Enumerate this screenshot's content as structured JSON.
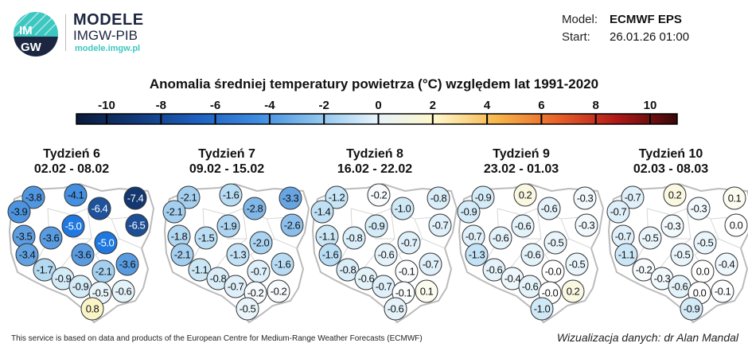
{
  "logo": {
    "letters": "IMGW",
    "name": "MODELE",
    "org": "IMGW-PIB",
    "url": "modele.imgw.pl"
  },
  "meta": {
    "model_label": "Model:",
    "model_value": "ECMWF EPS",
    "start_label": "Start:",
    "start_value": "26.01.26 01:00"
  },
  "title": "Anomalia średniej temperatury powietrza (°C) względem lat 1991-2020",
  "colorbar": {
    "ticks": [
      "-10",
      "-8",
      "-6",
      "-4",
      "-2",
      "0",
      "2",
      "4",
      "6",
      "8",
      "10"
    ],
    "range": [
      -10,
      10
    ],
    "colors": [
      "#0a1a3a",
      "#123a7a",
      "#1d5fc0",
      "#3d8be0",
      "#8cc3ee",
      "#e6f3fb",
      "#fff6c8",
      "#f7b64a",
      "#e8622a",
      "#b01818",
      "#3a0808"
    ]
  },
  "panels": [
    {
      "week": "Tydzień 6",
      "dates": "02.02 - 08.02",
      "values": [
        -3.8,
        -4.1,
        -7.4,
        -3.9,
        -6.4,
        -5.0,
        -6.5,
        -3.5,
        -3.6,
        -5.0,
        -3.4,
        -3.6,
        -3.6,
        -1.7,
        -2.1,
        -0.9,
        -0.9,
        -0.5,
        -0.6,
        0.8
      ]
    },
    {
      "week": "Tydzień 7",
      "dates": "09.02 - 15.02",
      "values": [
        -2.1,
        -1.6,
        -3.3,
        -2.1,
        -2.8,
        -1.9,
        -2.6,
        -1.8,
        -1.5,
        -2.0,
        -2.1,
        -1.3,
        -1.6,
        -1.1,
        -0.7,
        -0.8,
        -0.7,
        -0.2,
        -0.2,
        -0.5
      ]
    },
    {
      "week": "Tydzień 8",
      "dates": "16.02 - 22.02",
      "values": [
        -1.2,
        -0.2,
        -0.8,
        -1.4,
        -1.0,
        -0.9,
        -0.7,
        -1.1,
        -0.8,
        -0.7,
        -1.6,
        -0.6,
        -0.7,
        -0.8,
        -0.1,
        -0.6,
        -0.7,
        -0.1,
        0.1,
        -0.6
      ]
    },
    {
      "week": "Tydzień 9",
      "dates": "23.02 - 01.03",
      "values": [
        -0.9,
        0.2,
        -0.3,
        -0.9,
        -0.6,
        -0.6,
        -0.3,
        -0.7,
        -0.6,
        -0.5,
        -1.3,
        -0.6,
        -0.5,
        -0.6,
        -0.0,
        -0.4,
        -0.6,
        -0.0,
        0.2,
        -1.0
      ]
    },
    {
      "week": "Tydzień 10",
      "dates": "02.03 - 08.03",
      "values": [
        -0.7,
        0.2,
        0.1,
        -0.7,
        -0.3,
        -0.3,
        0.0,
        -0.7,
        -0.5,
        -0.5,
        -1.1,
        -0.5,
        -0.4,
        -0.2,
        0.0,
        -0.3,
        -0.6,
        0.0,
        -0.1,
        -0.9
      ]
    }
  ],
  "footer": {
    "source": "This service is based on data and products of the European Centre for Medium-Range Weather Forecasts (ECMWF)",
    "credit": "Wizualizacja danych: dr Alan Mandal"
  }
}
